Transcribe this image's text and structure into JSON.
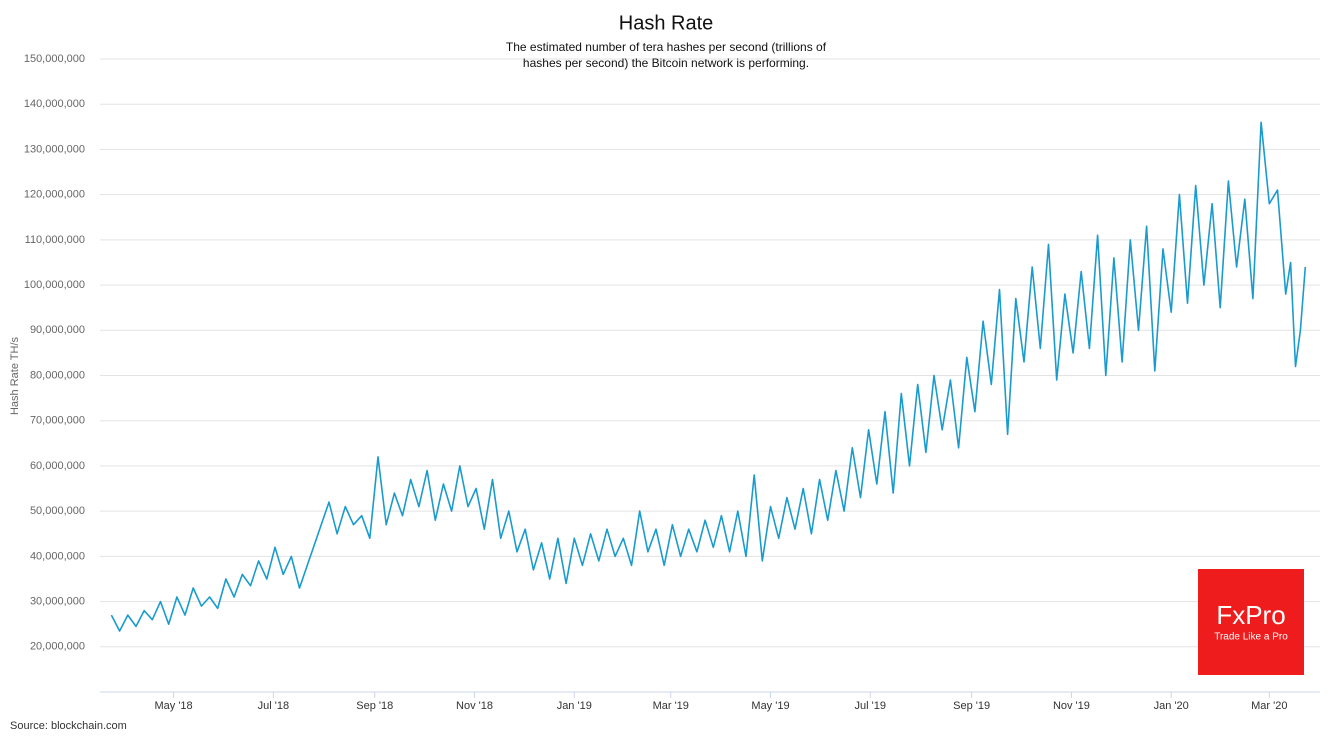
{
  "chart_data": {
    "type": "line",
    "title": "Hash Rate",
    "subtitle": "The estimated number of tera hashes per second (trillions of hashes per second) the Bitcoin network is performing.",
    "y_label": "Hash Rate TH/s",
    "source": "Source: blockchain.com",
    "logo": {
      "name": "FxPro",
      "slogan": "Trade Like a Pro",
      "color": "#ee1c1c"
    },
    "grid": true,
    "ylim": [
      10000000,
      150000000
    ],
    "yticks": [
      {
        "value": 20000000,
        "label": "20,000,000"
      },
      {
        "value": 30000000,
        "label": "30,000,000"
      },
      {
        "value": 40000000,
        "label": "40,000,000"
      },
      {
        "value": 50000000,
        "label": "50,000,000"
      },
      {
        "value": 60000000,
        "label": "60,000,000"
      },
      {
        "value": 70000000,
        "label": "70,000,000"
      },
      {
        "value": 80000000,
        "label": "80,000,000"
      },
      {
        "value": 90000000,
        "label": "90,000,000"
      },
      {
        "value": 100000000,
        "label": "100,000,000"
      },
      {
        "value": 110000000,
        "label": "110,000,000"
      },
      {
        "value": 120000000,
        "label": "120,000,000"
      },
      {
        "value": 130000000,
        "label": "130,000,000"
      },
      {
        "value": 140000000,
        "label": "140,000,000"
      },
      {
        "value": 150000000,
        "label": "150,000,000"
      }
    ],
    "xlim": [
      -15,
      731
    ],
    "xticks": [
      {
        "value": 30,
        "label": "May '18"
      },
      {
        "value": 91,
        "label": "Jul '18"
      },
      {
        "value": 153,
        "label": "Sep '18"
      },
      {
        "value": 214,
        "label": "Nov '18"
      },
      {
        "value": 275,
        "label": "Jan '19"
      },
      {
        "value": 334,
        "label": "Mar '19"
      },
      {
        "value": 395,
        "label": "May '19"
      },
      {
        "value": 456,
        "label": "Jul '19"
      },
      {
        "value": 518,
        "label": "Sep '19"
      },
      {
        "value": 579,
        "label": "Nov '19"
      },
      {
        "value": 640,
        "label": "Jan '20"
      },
      {
        "value": 700,
        "label": "Mar '20"
      }
    ],
    "x": [
      -8,
      -3,
      2,
      7,
      12,
      17,
      22,
      27,
      32,
      37,
      42,
      47,
      52,
      57,
      62,
      67,
      72,
      77,
      82,
      87,
      92,
      97,
      102,
      107,
      125,
      130,
      135,
      140,
      145,
      150,
      155,
      160,
      165,
      170,
      175,
      180,
      185,
      190,
      195,
      200,
      205,
      210,
      215,
      220,
      225,
      230,
      235,
      240,
      245,
      250,
      255,
      260,
      265,
      270,
      275,
      280,
      285,
      290,
      295,
      300,
      305,
      310,
      315,
      320,
      325,
      330,
      335,
      340,
      345,
      350,
      355,
      360,
      365,
      370,
      375,
      380,
      385,
      390,
      395,
      400,
      405,
      410,
      415,
      420,
      425,
      430,
      435,
      440,
      445,
      450,
      455,
      460,
      465,
      470,
      475,
      480,
      485,
      490,
      495,
      500,
      505,
      510,
      515,
      520,
      525,
      530,
      535,
      540,
      545,
      550,
      555,
      560,
      565,
      570,
      575,
      580,
      585,
      590,
      595,
      600,
      605,
      610,
      615,
      620,
      625,
      630,
      635,
      640,
      645,
      650,
      655,
      660,
      665,
      670,
      675,
      680,
      685,
      690,
      695,
      700,
      705,
      710,
      713,
      716,
      719,
      722
    ],
    "series": [
      {
        "name": "Hash Rate",
        "color": "#1a9bce",
        "values": [
          27000000,
          23500000,
          27000000,
          24500000,
          28000000,
          26000000,
          30000000,
          25000000,
          31000000,
          27000000,
          33000000,
          29000000,
          31000000,
          28500000,
          35000000,
          31000000,
          36000000,
          33500000,
          39000000,
          35000000,
          42000000,
          36000000,
          40000000,
          33000000,
          52000000,
          45000000,
          51000000,
          47000000,
          49000000,
          44000000,
          62000000,
          47000000,
          54000000,
          49000000,
          57000000,
          51000000,
          59000000,
          48000000,
          56000000,
          50000000,
          60000000,
          51000000,
          55000000,
          46000000,
          57000000,
          44000000,
          50000000,
          41000000,
          46000000,
          37000000,
          43000000,
          35000000,
          44000000,
          34000000,
          44000000,
          38000000,
          45000000,
          39000000,
          46000000,
          40000000,
          44000000,
          38000000,
          50000000,
          41000000,
          46000000,
          38000000,
          47000000,
          40000000,
          46000000,
          41000000,
          48000000,
          42000000,
          49000000,
          41000000,
          50000000,
          40000000,
          58000000,
          39000000,
          51000000,
          44000000,
          53000000,
          46000000,
          55000000,
          45000000,
          57000000,
          48000000,
          59000000,
          50000000,
          64000000,
          53000000,
          68000000,
          56000000,
          72000000,
          54000000,
          76000000,
          60000000,
          78000000,
          63000000,
          80000000,
          68000000,
          79000000,
          64000000,
          84000000,
          72000000,
          92000000,
          78000000,
          99000000,
          67000000,
          97000000,
          83000000,
          104000000,
          86000000,
          109000000,
          79000000,
          98000000,
          85000000,
          103000000,
          86000000,
          111000000,
          80000000,
          106000000,
          83000000,
          110000000,
          90000000,
          113000000,
          81000000,
          108000000,
          94000000,
          120000000,
          96000000,
          122000000,
          100000000,
          118000000,
          95000000,
          123000000,
          104000000,
          119000000,
          97000000,
          136000000,
          118000000,
          121000000,
          98000000,
          105000000,
          82000000,
          90000000,
          104000000
        ]
      }
    ]
  }
}
